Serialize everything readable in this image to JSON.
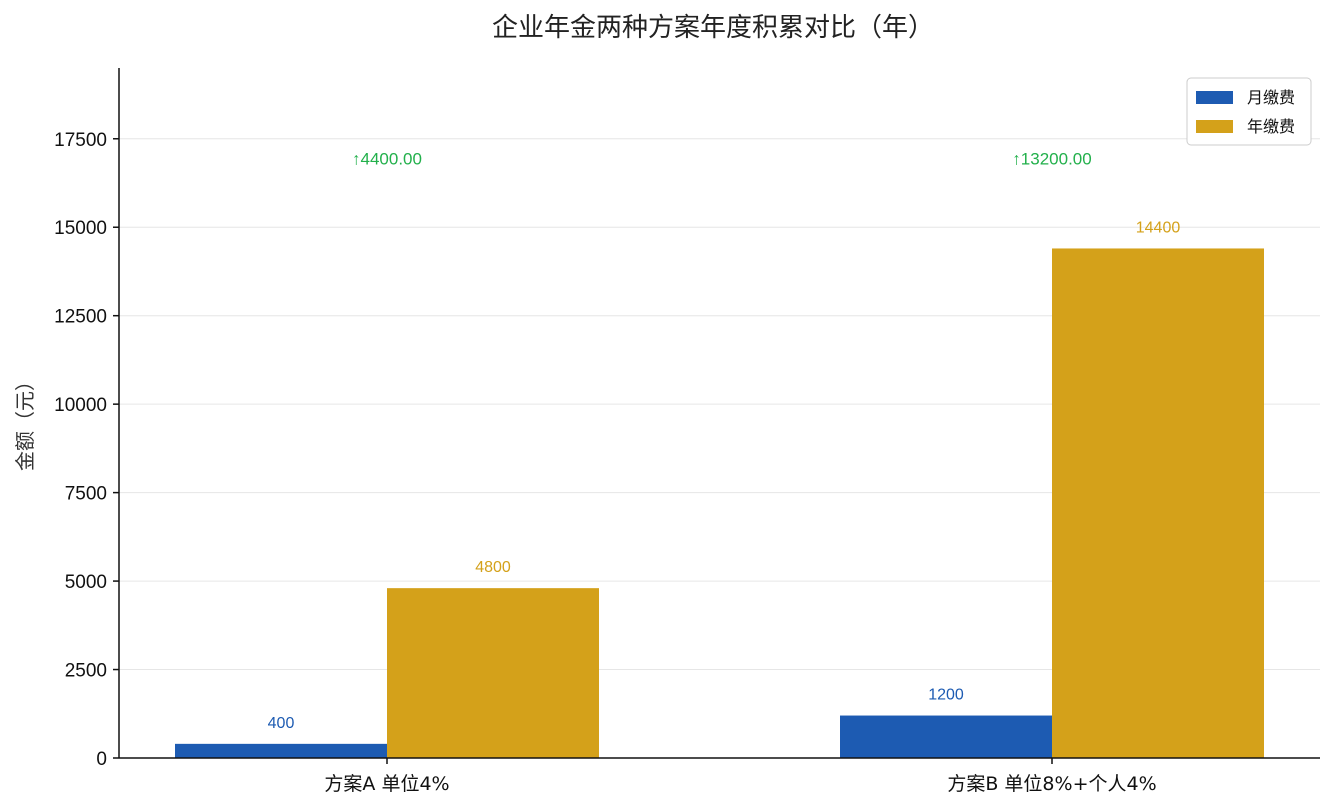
{
  "chart_data": {
    "type": "bar",
    "title": "企业年金两种方案年度积累对比（年）",
    "ylabel": "金额（元）",
    "xlabel": "",
    "categories": [
      "方案A 单位4%",
      "方案B 单位8%+个人4%"
    ],
    "series": [
      {
        "name": "月缴费",
        "values": [
          400,
          1200
        ],
        "color": "#1d5bb2"
      },
      {
        "name": "年缴费",
        "values": [
          4800,
          14400
        ],
        "color": "#d4a11a"
      }
    ],
    "data_labels": [
      [
        "400",
        "1200"
      ],
      [
        "4800",
        "14400"
      ]
    ],
    "difference_labels": [
      "↑4400.00",
      "↑13200.00"
    ],
    "difference_values": [
      4400,
      13200
    ],
    "difference_color": "#22b04b",
    "ylim": [
      0,
      19500
    ],
    "yticks": [
      0,
      2500,
      5000,
      7500,
      10000,
      12500,
      15000,
      17500
    ],
    "ytick_labels": [
      "0",
      "2500",
      "5000",
      "7500",
      "10000",
      "12500",
      "15000",
      "17500"
    ],
    "grid": true,
    "legend": "top-right"
  }
}
